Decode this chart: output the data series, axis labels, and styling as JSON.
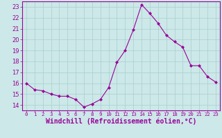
{
  "x": [
    0,
    1,
    2,
    3,
    4,
    5,
    6,
    7,
    8,
    9,
    10,
    11,
    12,
    13,
    14,
    15,
    16,
    17,
    18,
    19,
    20,
    21,
    22,
    23
  ],
  "y": [
    16.0,
    15.4,
    15.3,
    15.0,
    14.8,
    14.8,
    14.5,
    13.8,
    14.1,
    14.5,
    15.6,
    17.9,
    19.0,
    20.9,
    23.2,
    22.4,
    21.5,
    20.4,
    19.8,
    19.3,
    17.6,
    17.6,
    16.6,
    16.1
  ],
  "line_color": "#990099",
  "marker": "D",
  "marker_size": 2.0,
  "bg_color": "#cce8e8",
  "grid_color": "#aacece",
  "xlabel": "Windchill (Refroidissement éolien,°C)",
  "xlabel_color": "#990099",
  "ylim": [
    13.5,
    23.5
  ],
  "xlim": [
    -0.5,
    23.5
  ],
  "yticks": [
    14,
    15,
    16,
    17,
    18,
    19,
    20,
    21,
    22,
    23
  ],
  "xticks": [
    0,
    1,
    2,
    3,
    4,
    5,
    6,
    7,
    8,
    9,
    10,
    11,
    12,
    13,
    14,
    15,
    16,
    17,
    18,
    19,
    20,
    21,
    22,
    23
  ],
  "tick_color": "#990099",
  "ytick_label_fontsize": 6.0,
  "xtick_label_fontsize": 5.2,
  "xlabel_fontsize": 7.0,
  "spine_color": "#990099",
  "linewidth": 0.8
}
